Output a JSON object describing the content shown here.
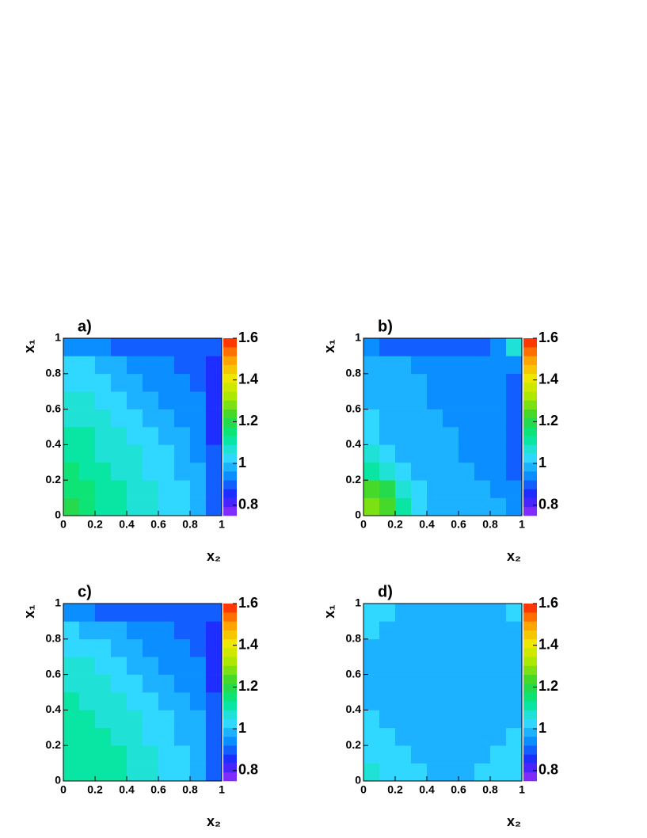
{
  "chart_data": [
    {
      "type": "heatmap",
      "title": "a)",
      "x_label": "x₂",
      "y_label": "x₁",
      "xlim": [
        0,
        1
      ],
      "ylim": [
        0,
        1
      ],
      "xticks": [
        0,
        0.2,
        0.4,
        0.6,
        0.8,
        1
      ],
      "yticks": [
        0,
        0.2,
        0.4,
        0.6,
        0.8,
        1
      ],
      "zlim": [
        0.75,
        1.6
      ],
      "zticks": [
        0.8,
        1,
        1.2,
        1.4,
        1.6
      ],
      "contours": 20,
      "palette": [
        "#9b30ff",
        "#2020ff",
        "#0a8cff",
        "#33ddff",
        "#00e890",
        "#33d633",
        "#a8e800",
        "#f0e800",
        "#ff9a00",
        "#ff1a00"
      ],
      "z": [
        [
          1.18,
          1.16,
          1.12,
          1.1,
          1.08,
          1.06,
          1.04,
          1.02,
          1.0,
          0.9
        ],
        [
          1.16,
          1.14,
          1.12,
          1.1,
          1.07,
          1.05,
          1.03,
          1.01,
          0.99,
          0.89
        ],
        [
          1.14,
          1.12,
          1.1,
          1.08,
          1.06,
          1.04,
          1.02,
          1.0,
          0.98,
          0.88
        ],
        [
          1.12,
          1.1,
          1.08,
          1.07,
          1.05,
          1.03,
          1.01,
          0.99,
          0.96,
          0.88
        ],
        [
          1.1,
          1.09,
          1.07,
          1.05,
          1.04,
          1.02,
          1.0,
          0.98,
          0.95,
          0.87
        ],
        [
          1.08,
          1.07,
          1.05,
          1.04,
          1.02,
          1.0,
          0.98,
          0.96,
          0.94,
          0.87
        ],
        [
          1.06,
          1.05,
          1.04,
          1.02,
          1.0,
          0.98,
          0.96,
          0.94,
          0.92,
          0.86
        ],
        [
          1.04,
          1.03,
          1.02,
          1.0,
          0.98,
          0.96,
          0.94,
          0.92,
          0.9,
          0.86
        ],
        [
          1.02,
          1.01,
          1.0,
          0.98,
          0.96,
          0.94,
          0.92,
          0.9,
          0.89,
          0.86
        ],
        [
          0.94,
          0.93,
          0.92,
          0.91,
          0.9,
          0.9,
          0.89,
          0.88,
          0.88,
          0.88
        ]
      ]
    },
    {
      "type": "heatmap",
      "title": "b)",
      "x_label": "x₂",
      "y_label": "x₁",
      "xlim": [
        0,
        1
      ],
      "ylim": [
        0,
        1
      ],
      "xticks": [
        0,
        0.2,
        0.4,
        0.6,
        0.8,
        1
      ],
      "yticks": [
        0,
        0.2,
        0.4,
        0.6,
        0.8,
        1
      ],
      "zlim": [
        0.75,
        1.6
      ],
      "zticks": [
        0.8,
        1,
        1.2,
        1.4,
        1.6
      ],
      "contours": 20,
      "palette": [
        "#9b30ff",
        "#2020ff",
        "#0a8cff",
        "#33ddff",
        "#00e890",
        "#33d633",
        "#a8e800",
        "#f0e800",
        "#ff9a00",
        "#ff1a00"
      ],
      "z": [
        [
          1.3,
          1.25,
          1.12,
          1.03,
          1.0,
          0.98,
          0.98,
          0.97,
          0.97,
          0.92
        ],
        [
          1.25,
          1.18,
          1.08,
          1.02,
          0.99,
          0.98,
          0.97,
          0.97,
          0.96,
          0.92
        ],
        [
          1.12,
          1.08,
          1.03,
          1.0,
          0.98,
          0.97,
          0.97,
          0.96,
          0.96,
          0.91
        ],
        [
          1.05,
          1.02,
          1.0,
          0.99,
          0.98,
          0.97,
          0.96,
          0.96,
          0.95,
          0.91
        ],
        [
          1.02,
          1.0,
          0.99,
          0.98,
          0.97,
          0.97,
          0.96,
          0.96,
          0.95,
          0.9
        ],
        [
          1.01,
          0.99,
          0.98,
          0.97,
          0.97,
          0.96,
          0.96,
          0.95,
          0.95,
          0.9
        ],
        [
          1.0,
          0.99,
          0.98,
          0.97,
          0.96,
          0.96,
          0.95,
          0.95,
          0.94,
          0.9
        ],
        [
          0.99,
          0.98,
          0.97,
          0.97,
          0.96,
          0.95,
          0.95,
          0.94,
          0.94,
          0.9
        ],
        [
          0.98,
          0.97,
          0.97,
          0.96,
          0.96,
          0.95,
          0.94,
          0.94,
          0.94,
          0.92
        ],
        [
          0.92,
          0.91,
          0.9,
          0.9,
          0.9,
          0.9,
          0.9,
          0.91,
          0.93,
          1.05
        ]
      ]
    },
    {
      "type": "heatmap",
      "title": "c)",
      "x_label": "x₂",
      "y_label": "x₁",
      "xlim": [
        0,
        1
      ],
      "ylim": [
        0,
        1
      ],
      "xticks": [
        0,
        0.2,
        0.4,
        0.6,
        0.8,
        1
      ],
      "yticks": [
        0,
        0.2,
        0.4,
        0.6,
        0.8,
        1
      ],
      "zlim": [
        0.75,
        1.6
      ],
      "zticks": [
        0.8,
        1,
        1.2,
        1.4,
        1.6
      ],
      "contours": 20,
      "palette": [
        "#9b30ff",
        "#2020ff",
        "#0a8cff",
        "#33ddff",
        "#00e890",
        "#33d633",
        "#a8e800",
        "#f0e800",
        "#ff9a00",
        "#ff1a00"
      ],
      "z": [
        [
          1.12,
          1.12,
          1.11,
          1.1,
          1.08,
          1.06,
          1.04,
          1.02,
          1.0,
          0.9
        ],
        [
          1.12,
          1.11,
          1.1,
          1.09,
          1.07,
          1.05,
          1.03,
          1.01,
          0.99,
          0.89
        ],
        [
          1.11,
          1.1,
          1.09,
          1.08,
          1.06,
          1.04,
          1.02,
          1.0,
          0.98,
          0.89
        ],
        [
          1.1,
          1.09,
          1.08,
          1.07,
          1.05,
          1.03,
          1.01,
          0.99,
          0.97,
          0.88
        ],
        [
          1.09,
          1.08,
          1.07,
          1.05,
          1.04,
          1.02,
          1.0,
          0.98,
          0.96,
          0.88
        ],
        [
          1.07,
          1.06,
          1.05,
          1.04,
          1.02,
          1.0,
          0.98,
          0.96,
          0.94,
          0.87
        ],
        [
          1.05,
          1.05,
          1.04,
          1.02,
          1.0,
          0.98,
          0.96,
          0.94,
          0.92,
          0.87
        ],
        [
          1.03,
          1.03,
          1.02,
          1.0,
          0.98,
          0.96,
          0.94,
          0.92,
          0.9,
          0.87
        ],
        [
          1.01,
          1.0,
          0.99,
          0.98,
          0.96,
          0.94,
          0.92,
          0.9,
          0.89,
          0.87
        ],
        [
          0.93,
          0.92,
          0.91,
          0.91,
          0.9,
          0.9,
          0.89,
          0.88,
          0.88,
          0.88
        ]
      ]
    },
    {
      "type": "heatmap",
      "title": "d)",
      "x_label": "x₂",
      "y_label": "x₁",
      "xlim": [
        0,
        1
      ],
      "ylim": [
        0,
        1
      ],
      "xticks": [
        0,
        0.2,
        0.4,
        0.6,
        0.8,
        1
      ],
      "yticks": [
        0,
        0.2,
        0.4,
        0.6,
        0.8,
        1
      ],
      "zlim": [
        0.75,
        1.6
      ],
      "zticks": [
        0.8,
        1,
        1.2,
        1.4,
        1.6
      ],
      "contours": 20,
      "palette": [
        "#9b30ff",
        "#2020ff",
        "#0a8cff",
        "#33ddff",
        "#00e890",
        "#33d633",
        "#a8e800",
        "#f0e800",
        "#ff9a00",
        "#ff1a00"
      ],
      "z": [
        [
          1.05,
          1.03,
          1.02,
          1.01,
          1.0,
          1.0,
          1.0,
          1.01,
          1.02,
          1.04
        ],
        [
          1.03,
          1.02,
          1.01,
          1.0,
          0.99,
          0.99,
          1.0,
          1.0,
          1.01,
          1.02
        ],
        [
          1.02,
          1.01,
          1.0,
          0.99,
          0.98,
          0.99,
          0.99,
          1.0,
          1.0,
          1.01
        ],
        [
          1.01,
          1.0,
          0.99,
          0.98,
          0.97,
          0.98,
          0.99,
          0.99,
          1.0,
          1.0
        ],
        [
          1.0,
          0.99,
          0.98,
          0.97,
          0.97,
          0.98,
          0.98,
          0.99,
          0.99,
          1.0
        ],
        [
          1.0,
          0.99,
          0.98,
          0.98,
          0.97,
          0.97,
          0.98,
          0.98,
          0.99,
          0.99
        ],
        [
          1.0,
          0.99,
          0.99,
          0.98,
          0.98,
          0.97,
          0.97,
          0.98,
          0.98,
          0.99
        ],
        [
          1.0,
          1.0,
          0.99,
          0.99,
          0.98,
          0.98,
          0.97,
          0.97,
          0.98,
          0.99
        ],
        [
          1.01,
          1.0,
          1.0,
          0.99,
          0.99,
          0.98,
          0.98,
          0.98,
          0.98,
          0.99
        ],
        [
          1.01,
          1.01,
          1.0,
          1.0,
          0.99,
          0.99,
          0.99,
          0.99,
          1.0,
          1.04
        ]
      ]
    }
  ]
}
